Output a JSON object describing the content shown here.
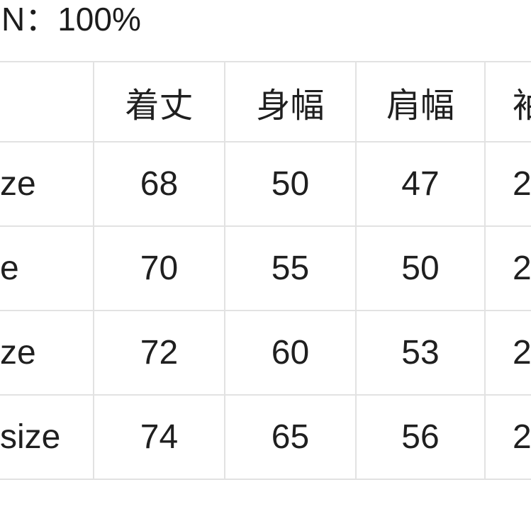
{
  "page": {
    "material_fragment": "N：100%"
  },
  "size_table": {
    "columns": [
      "",
      "着丈",
      "身幅",
      "肩幅",
      "袖"
    ],
    "rows": [
      {
        "label": "ze",
        "values": [
          "68",
          "50",
          "47",
          "2"
        ]
      },
      {
        "label": "e",
        "values": [
          "70",
          "55",
          "50",
          "2"
        ]
      },
      {
        "label": "ze",
        "values": [
          "72",
          "60",
          "53",
          "2"
        ]
      },
      {
        "label": "size",
        "values": [
          "74",
          "65",
          "56",
          "2"
        ]
      }
    ],
    "colors": {
      "border": "#e2e2e2",
      "text": "#1f1f1f",
      "background": "#ffffff"
    }
  }
}
